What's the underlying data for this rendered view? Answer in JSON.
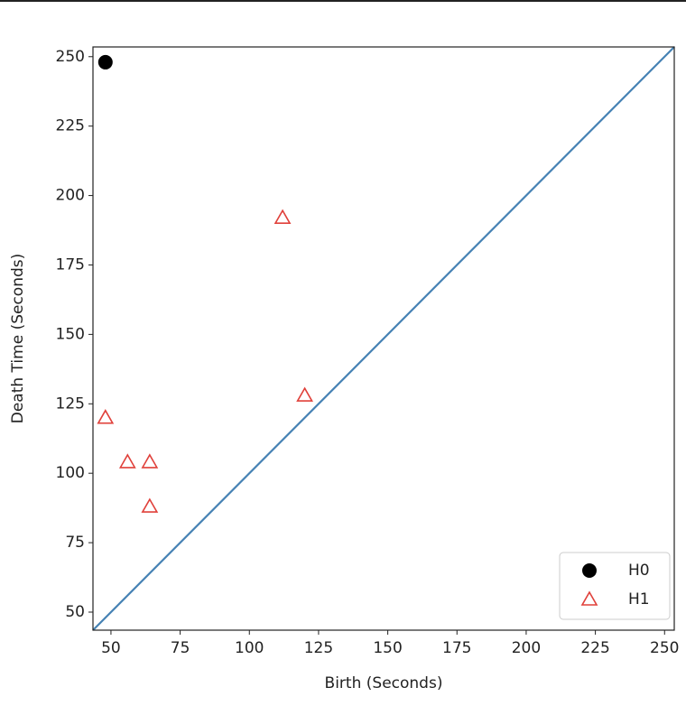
{
  "chart_data": {
    "type": "scatter",
    "xlabel": "Birth (Seconds)",
    "ylabel": "Death Time (Seconds)",
    "series": [
      {
        "name": "H0",
        "color": "#000000",
        "marker": "circle",
        "x": [
          48
        ],
        "values": [
          248
        ]
      },
      {
        "name": "H1",
        "color": "#e0403a",
        "marker": "triangle",
        "x": [
          48,
          56,
          64,
          64,
          112,
          120
        ],
        "values": [
          120,
          104,
          104,
          88,
          192,
          128
        ]
      }
    ],
    "diagonal": true,
    "diagonal_color": "#4682b4",
    "xlim": [
      43.5,
      253.5
    ],
    "ylim": [
      43.5,
      253.5
    ],
    "xticks": [
      50,
      75,
      100,
      125,
      150,
      175,
      200,
      225,
      250
    ],
    "yticks": [
      50,
      75,
      100,
      125,
      150,
      175,
      200,
      225,
      250
    ],
    "legend": "lower right"
  }
}
